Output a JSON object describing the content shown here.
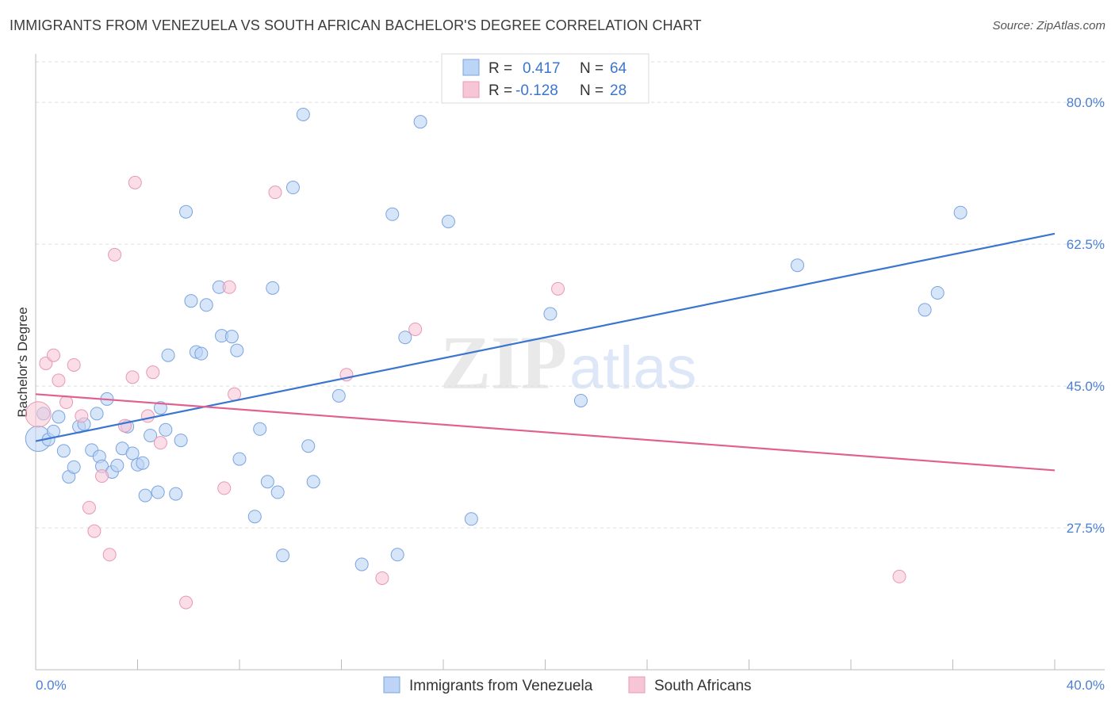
{
  "title": "IMMIGRANTS FROM VENEZUELA VS SOUTH AFRICAN BACHELOR'S DEGREE CORRELATION CHART",
  "source": "Source: ZipAtlas.com",
  "watermark": {
    "zip": "ZIP",
    "atlas": "atlas"
  },
  "colors": {
    "blue": "#3a75d0",
    "blue_fill": "#bcd4f5",
    "pink": "#e06090",
    "pink_fill": "#f7c6d6",
    "tick_text": "#4a7fd4",
    "grid": "#dddddd"
  },
  "legend": {
    "rows": [
      {
        "r_label": "R =",
        "r_value": "0.417",
        "n_label": "N =",
        "n_value": "64"
      },
      {
        "r_label": "R =",
        "r_value": "-0.128",
        "n_label": "N =",
        "n_value": "28"
      }
    ]
  },
  "chart_data": {
    "type": "scatter",
    "title": "IMMIGRANTS FROM VENEZUELA VS SOUTH AFRICAN BACHELOR'S DEGREE CORRELATION CHART",
    "xlabel": "",
    "ylabel": "Bachelor's Degree",
    "xlim": [
      0,
      40
    ],
    "ylim": [
      10,
      85
    ],
    "x_tick_labels": [
      "0.0%",
      "40.0%"
    ],
    "y_ticks": [
      27.5,
      45.0,
      62.5,
      80.0
    ],
    "y_tick_labels": [
      "27.5%",
      "45.0%",
      "62.5%",
      "80.0%"
    ],
    "grid": true,
    "legend_position": "top-center",
    "series": [
      {
        "name": "Immigrants from Venezuela",
        "color": "#3a75d0",
        "trend": {
          "x": [
            0,
            40
          ],
          "y": [
            38.2,
            63.8
          ]
        },
        "points": [
          [
            0.1,
            38.5
          ],
          [
            0.3,
            41.6
          ],
          [
            0.5,
            38.4
          ],
          [
            0.7,
            39.4
          ],
          [
            0.9,
            41.2
          ],
          [
            1.1,
            37.0
          ],
          [
            1.3,
            33.8
          ],
          [
            1.5,
            35.0
          ],
          [
            1.7,
            40.0
          ],
          [
            1.9,
            40.3
          ],
          [
            2.2,
            37.1
          ],
          [
            2.4,
            41.6
          ],
          [
            2.5,
            36.3
          ],
          [
            2.6,
            35.1
          ],
          [
            2.8,
            43.4
          ],
          [
            3.0,
            34.4
          ],
          [
            3.2,
            35.2
          ],
          [
            3.4,
            37.3
          ],
          [
            3.6,
            40.0
          ],
          [
            3.8,
            36.7
          ],
          [
            4.0,
            35.3
          ],
          [
            4.2,
            35.5
          ],
          [
            4.3,
            31.5
          ],
          [
            4.5,
            38.9
          ],
          [
            4.8,
            31.9
          ],
          [
            4.9,
            42.3
          ],
          [
            5.1,
            39.6
          ],
          [
            5.2,
            48.8
          ],
          [
            5.5,
            31.7
          ],
          [
            5.7,
            38.3
          ],
          [
            5.9,
            66.5
          ],
          [
            6.1,
            55.5
          ],
          [
            6.3,
            49.2
          ],
          [
            6.5,
            49.0
          ],
          [
            6.7,
            55.0
          ],
          [
            7.2,
            57.2
          ],
          [
            7.3,
            51.2
          ],
          [
            7.7,
            51.1
          ],
          [
            7.9,
            49.4
          ],
          [
            8.0,
            36.0
          ],
          [
            8.6,
            28.9
          ],
          [
            8.8,
            39.7
          ],
          [
            9.1,
            33.2
          ],
          [
            9.3,
            57.1
          ],
          [
            9.5,
            31.9
          ],
          [
            9.7,
            24.1
          ],
          [
            10.1,
            69.5
          ],
          [
            10.5,
            78.5
          ],
          [
            10.7,
            37.6
          ],
          [
            10.9,
            33.2
          ],
          [
            11.9,
            43.8
          ],
          [
            12.8,
            23.0
          ],
          [
            14.0,
            66.2
          ],
          [
            14.2,
            24.2
          ],
          [
            14.5,
            51.0
          ],
          [
            15.1,
            77.6
          ],
          [
            16.2,
            65.3
          ],
          [
            17.1,
            28.6
          ],
          [
            20.2,
            53.9
          ],
          [
            21.4,
            43.2
          ],
          [
            29.9,
            59.9
          ],
          [
            34.9,
            54.4
          ],
          [
            35.4,
            56.5
          ],
          [
            36.3,
            66.4
          ]
        ]
      },
      {
        "name": "South Africans",
        "color": "#e06090",
        "trend": {
          "x": [
            0,
            40
          ],
          "y": [
            44.0,
            34.6
          ]
        },
        "points": [
          [
            0.1,
            41.5
          ],
          [
            0.4,
            47.8
          ],
          [
            0.7,
            48.8
          ],
          [
            0.9,
            45.7
          ],
          [
            1.2,
            43.0
          ],
          [
            1.5,
            47.6
          ],
          [
            1.8,
            41.3
          ],
          [
            2.1,
            30.0
          ],
          [
            2.3,
            27.1
          ],
          [
            2.6,
            33.9
          ],
          [
            2.9,
            24.2
          ],
          [
            3.1,
            61.2
          ],
          [
            3.5,
            40.1
          ],
          [
            3.8,
            46.1
          ],
          [
            3.9,
            70.1
          ],
          [
            4.4,
            41.3
          ],
          [
            4.6,
            46.7
          ],
          [
            4.9,
            38.0
          ],
          [
            5.9,
            18.3
          ],
          [
            7.4,
            32.4
          ],
          [
            7.6,
            57.2
          ],
          [
            7.8,
            44.0
          ],
          [
            9.4,
            68.9
          ],
          [
            12.2,
            46.4
          ],
          [
            13.6,
            21.3
          ],
          [
            14.9,
            52.0
          ],
          [
            20.5,
            57.0
          ],
          [
            33.9,
            21.5
          ]
        ]
      }
    ]
  },
  "bottom_legend": [
    {
      "label": "Immigrants from Venezuela"
    },
    {
      "label": "South Africans"
    }
  ]
}
